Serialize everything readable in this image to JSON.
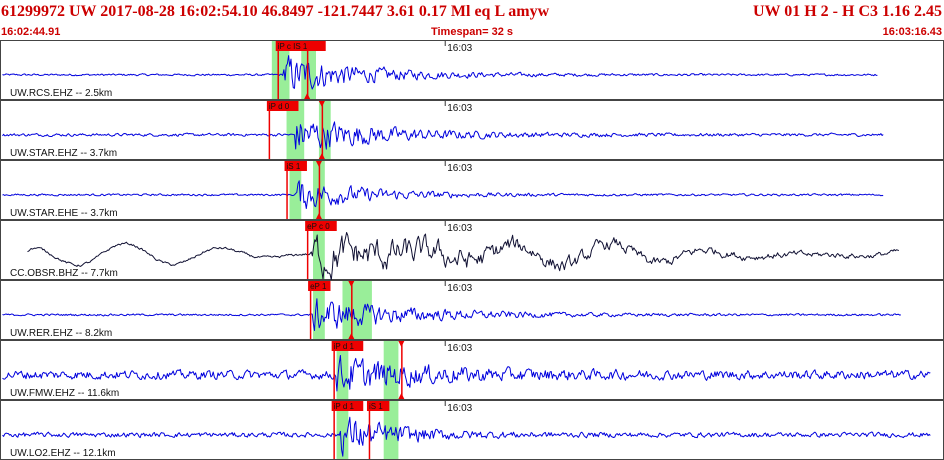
{
  "header": {
    "title": "61299972 UW 2017-08-28 16:02:54.10    46.8497  -121.7447    3.61   0.17  Ml   eq   L  amyw",
    "right": "UW 01  H   2   -  H C3     1.16   2.45"
  },
  "subheader": {
    "start_time": "16:02:44.91",
    "timespan": "Timespan=  32 s",
    "end_time": "16:03:16.43"
  },
  "colors": {
    "header_text": "#cc0000",
    "trace_blue": "#0000dd",
    "trace_black": "#111133",
    "pick_window": "#99ee99",
    "pick_flag": "#ee0000",
    "panel_border": "#444444"
  },
  "time_axis": {
    "start_s": 0,
    "end_s": 32,
    "minute_mark_s": 15.09,
    "minute_label": "16:03"
  },
  "panels": [
    {
      "label": "UW.RCS.EHZ -- 2.5km",
      "color": "blue",
      "noise": 0.05,
      "amp": 0.95,
      "decay": 2.8,
      "onset_s": 9.6,
      "end_s": 29.8,
      "picks": [
        {
          "label": "iP c IS  1",
          "time_s": 9.4,
          "window": [
            9.2,
            9.8
          ]
        },
        {
          "label": "",
          "time_s": 10.4,
          "window": [
            10.2,
            10.7
          ]
        }
      ]
    },
    {
      "label": "UW.STAR.EHZ -- 3.7km",
      "color": "blue",
      "noise": 0.07,
      "amp": 0.9,
      "decay": 3.0,
      "onset_s": 10.0,
      "end_s": 30.0,
      "picks": [
        {
          "label": "iP d 0",
          "time_s": 9.1,
          "window": [
            9.7,
            10.3
          ]
        },
        {
          "label": "",
          "time_s": 10.9,
          "window": [
            10.8,
            11.2
          ]
        }
      ]
    },
    {
      "label": "UW.STAR.EHE -- 3.7km",
      "color": "blue",
      "noise": 0.05,
      "amp": 0.75,
      "decay": 2.6,
      "onset_s": 10.0,
      "end_s": 30.0,
      "picks": [
        {
          "label": "iS 1",
          "time_s": 9.7,
          "window": [
            9.8,
            10.2
          ]
        },
        {
          "label": "",
          "time_s": 10.8,
          "window": [
            10.6,
            11.0
          ]
        }
      ]
    },
    {
      "label": "CC.OBSR.BHZ -- 7.7km",
      "color": "black",
      "noise": 0.06,
      "amp": 0.85,
      "decay": 7.0,
      "onset_s": 10.5,
      "end_s": 30.5,
      "picks": [
        {
          "label": "eP c 0",
          "time_s": 10.4,
          "window": [
            10.6,
            11.0
          ]
        }
      ]
    },
    {
      "label": "UW.RER.EHZ -- 8.2km",
      "color": "blue",
      "noise": 0.05,
      "amp": 0.8,
      "decay": 3.5,
      "onset_s": 10.6,
      "end_s": 30.6,
      "picks": [
        {
          "label": "eP 1",
          "time_s": 10.5,
          "window": [
            10.6,
            11.0
          ]
        },
        {
          "label": "",
          "time_s": 11.9,
          "window": [
            11.6,
            12.6
          ]
        }
      ]
    },
    {
      "label": "UW.FMW.EHZ -- 11.6km",
      "color": "blue",
      "noise": 0.22,
      "amp": 0.75,
      "decay": 3.0,
      "onset_s": 11.4,
      "end_s": 31.6,
      "picks": [
        {
          "label": "iP d 1",
          "time_s": 11.3,
          "window": [
            11.4,
            11.8
          ]
        },
        {
          "label": "",
          "time_s": 13.6,
          "window": [
            13.0,
            13.5
          ]
        }
      ]
    },
    {
      "label": "UW.LO2.EHZ -- 12.1km",
      "color": "blue",
      "noise": 0.12,
      "amp": 0.9,
      "decay": 2.0,
      "onset_s": 11.5,
      "end_s": 31.6,
      "picks": [
        {
          "label": "iP d 1",
          "time_s": 11.3,
          "window": [
            11.4,
            11.8
          ]
        },
        {
          "label": "iS 1",
          "time_s": 12.5,
          "window": [
            13.0,
            13.5
          ]
        }
      ]
    }
  ]
}
